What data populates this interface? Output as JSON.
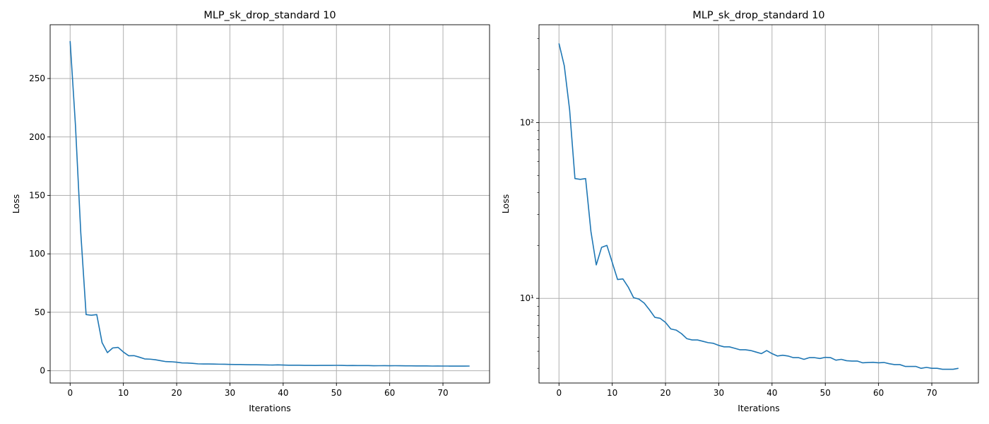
{
  "chart_data": [
    {
      "type": "line",
      "title": "MLP_sk_drop_standard 10",
      "xlabel": "Iterations",
      "ylabel": "Loss",
      "yscale": "linear",
      "xlim": [
        -3.75,
        78.75
      ],
      "ylim": [
        -10.5,
        296.0
      ],
      "xticks": [
        0,
        10,
        20,
        30,
        40,
        50,
        60,
        70
      ],
      "yticks": [
        0,
        50,
        100,
        150,
        200,
        250
      ],
      "ytick_labels": [
        "0",
        "50",
        "100",
        "150",
        "200",
        "250"
      ],
      "grid": true,
      "series": [
        {
          "color": "#1f77b4"
        }
      ]
    },
    {
      "type": "line",
      "title": "MLP_sk_drop_standard 10",
      "xlabel": "Iterations",
      "ylabel": "Loss",
      "yscale": "log",
      "xlim": [
        -3.75,
        78.75
      ],
      "ylim": [
        3.3,
        360
      ],
      "xticks": [
        0,
        10,
        20,
        30,
        40,
        50,
        60,
        70
      ],
      "yticks": [
        10,
        100
      ],
      "ytick_labels": [
        "10¹",
        "10²"
      ],
      "grid": true,
      "series": [
        {
          "color": "#1f77b4"
        }
      ]
    }
  ],
  "loss": {
    "x": [
      0,
      1,
      2,
      3,
      4,
      5,
      6,
      7,
      8,
      9,
      10,
      11,
      12,
      13,
      14,
      15,
      16,
      17,
      18,
      19,
      20,
      21,
      22,
      23,
      24,
      25,
      26,
      27,
      28,
      29,
      30,
      31,
      32,
      33,
      34,
      35,
      36,
      37,
      38,
      39,
      40,
      41,
      42,
      43,
      44,
      45,
      46,
      47,
      48,
      49,
      50,
      51,
      52,
      53,
      54,
      55,
      56,
      57,
      58,
      59,
      60,
      61,
      62,
      63,
      64,
      65,
      66,
      67,
      68,
      69,
      70,
      71,
      72,
      73,
      74,
      75
    ],
    "y": [
      282,
      210,
      118,
      48,
      47.5,
      48,
      24,
      15.5,
      19.5,
      20,
      16,
      12.8,
      12.9,
      11.6,
      10.1,
      9.9,
      9.4,
      8.6,
      7.8,
      7.7,
      7.3,
      6.7,
      6.6,
      6.3,
      5.9,
      5.8,
      5.8,
      5.7,
      5.6,
      5.55,
      5.4,
      5.3,
      5.3,
      5.2,
      5.1,
      5.1,
      5.05,
      4.95,
      4.85,
      5.05,
      4.85,
      4.7,
      4.75,
      4.7,
      4.6,
      4.6,
      4.5,
      4.6,
      4.6,
      4.55,
      4.62,
      4.6,
      4.45,
      4.5,
      4.42,
      4.4,
      4.4,
      4.3,
      4.32,
      4.33,
      4.3,
      4.32,
      4.25,
      4.2,
      4.2,
      4.1,
      4.1,
      4.1,
      4.0,
      4.05,
      4.0,
      4.0,
      3.95,
      3.95,
      3.95,
      4.0
    ]
  }
}
